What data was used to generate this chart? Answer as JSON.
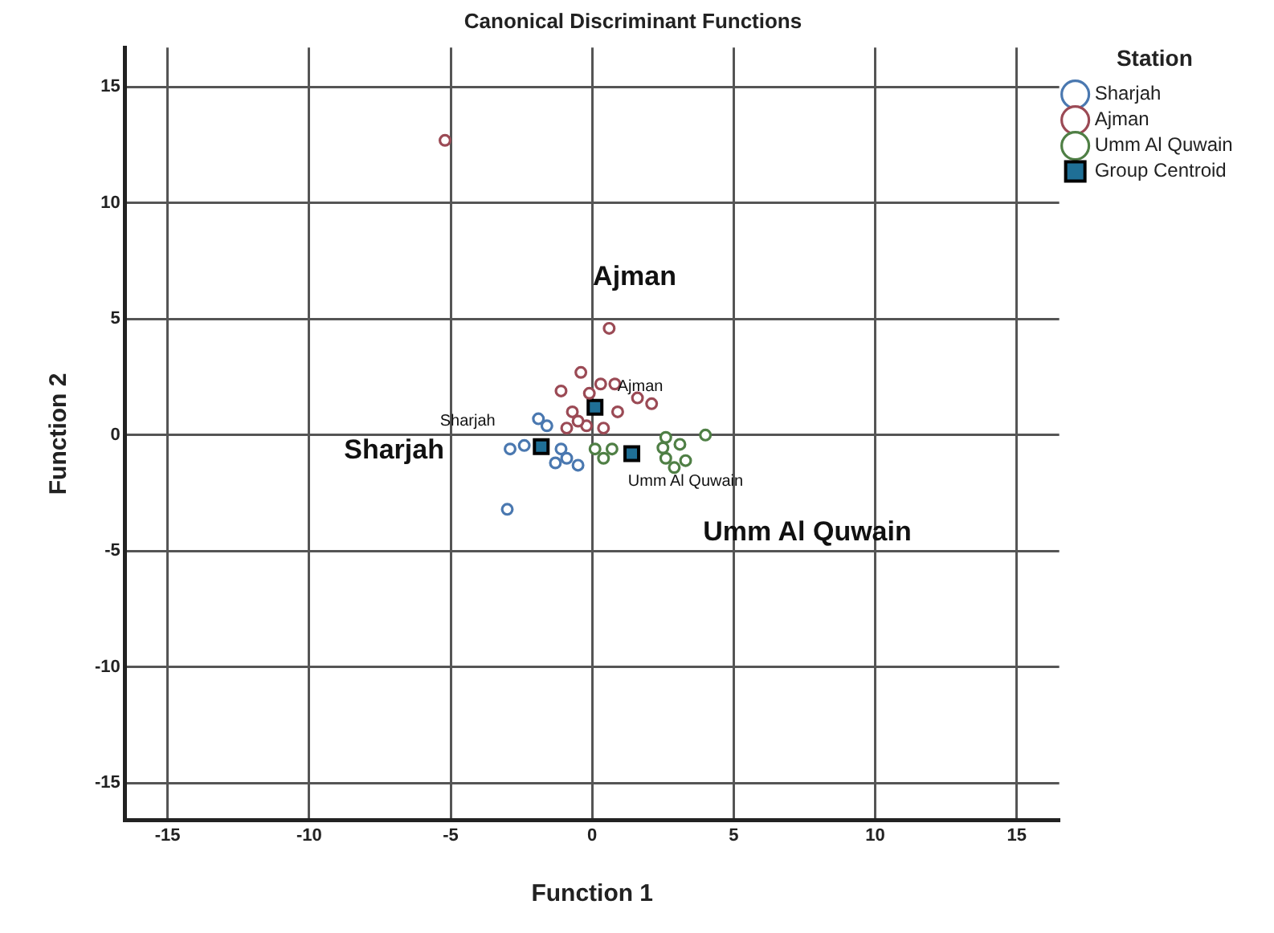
{
  "chart_data": {
    "type": "scatter",
    "title": "Canonical Discriminant Functions",
    "xlabel": "Function 1",
    "ylabel": "Function 2",
    "legend_title": "Station",
    "legend": "top right",
    "grid": true,
    "marker": "circle",
    "xlim": [
      -16.5,
      16.5
    ],
    "ylim": [
      -16.6,
      16.7
    ],
    "xticks": [
      -15,
      -10,
      -5,
      0,
      5,
      10,
      15
    ],
    "yticks": [
      -15,
      -10,
      -5,
      0,
      5,
      10,
      15
    ],
    "series": [
      {
        "name": "Sharjah",
        "color": "#4a78b0",
        "x": [
          -1.9,
          -1.6,
          -2.9,
          -1.1,
          -0.9,
          -0.5,
          -1.3,
          -3.0,
          -2.4
        ],
        "values": [
          0.7,
          0.4,
          -0.6,
          -0.6,
          -1.0,
          -1.3,
          -1.2,
          -3.2,
          -0.45
        ]
      },
      {
        "name": "Ajman",
        "color": "#9b4a55",
        "x": [
          -5.2,
          0.6,
          -0.4,
          -1.1,
          0.3,
          0.8,
          1.6,
          2.1,
          -0.1,
          -0.7,
          0.9,
          -0.2,
          -0.9,
          0.4,
          -0.5
        ],
        "values": [
          12.7,
          4.6,
          2.7,
          1.9,
          2.2,
          2.2,
          1.6,
          1.35,
          1.8,
          1.0,
          1.0,
          0.4,
          0.3,
          0.3,
          0.6
        ]
      },
      {
        "name": "Umm Al Quwain",
        "color": "#4f7f45",
        "x": [
          0.1,
          0.4,
          0.7,
          2.6,
          3.1,
          4.0,
          2.6,
          3.3,
          2.9,
          2.5
        ],
        "values": [
          -0.6,
          -1.0,
          -0.6,
          -0.1,
          -0.4,
          0.0,
          -1.0,
          -1.1,
          -1.4,
          -0.55
        ]
      },
      {
        "name": "Group Centroid",
        "color": "#1f6f96",
        "marker": "square",
        "x": [
          -1.8,
          0.1,
          1.4
        ],
        "values": [
          -0.5,
          1.2,
          -0.8
        ]
      }
    ],
    "annotations": [
      "Sharjah",
      "Ajman",
      "Umm Al Quwain",
      "Sharjah",
      "Ajman",
      "Umm Al Quwain"
    ]
  }
}
